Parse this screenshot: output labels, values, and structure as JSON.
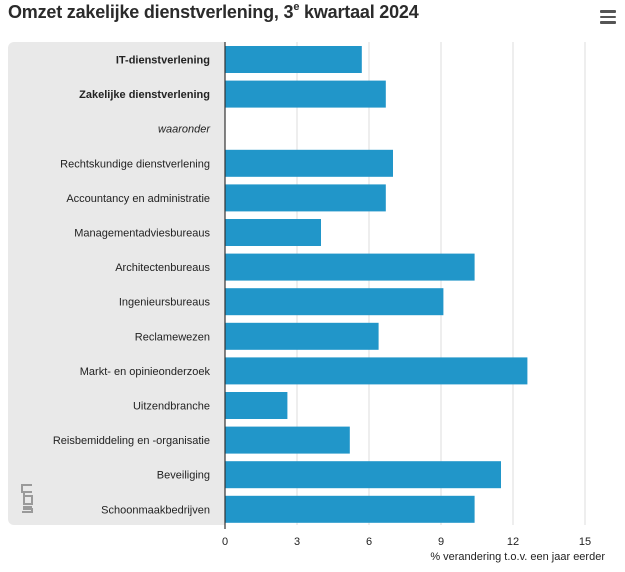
{
  "header": {
    "title_main": "Omzet zakelijke dienstverlening, 3",
    "title_sup": "e",
    "title_end": " kwartaal 2024",
    "menu_icon": "hamburger-icon"
  },
  "logo": "cbs-logo",
  "colors": {
    "bar": "#2196c9",
    "panel": "#e9e9e9",
    "grid": "#dddddd",
    "axis": "#333333"
  },
  "chart_data": {
    "type": "bar",
    "orientation": "horizontal",
    "title": "Omzet zakelijke dienstverlening, 3e kwartaal 2024",
    "xlabel": "% verandering t.o.v. een jaar eerder",
    "xlim": [
      0,
      15
    ],
    "xticks": [
      0,
      3,
      6,
      9,
      12,
      15
    ],
    "grid": true,
    "categories": [
      {
        "label": "IT-dienstverlening",
        "value": 5.7,
        "style": "bold"
      },
      {
        "label": "Zakelijke dienstverlening",
        "value": 6.7,
        "style": "bold"
      },
      {
        "label": "waaronder",
        "value": null,
        "style": "italic"
      },
      {
        "label": "Rechtskundige dienstverlening",
        "value": 7.0,
        "style": "normal"
      },
      {
        "label": "Accountancy en administratie",
        "value": 6.7,
        "style": "normal"
      },
      {
        "label": "Managementadviesbureaus",
        "value": 4.0,
        "style": "normal"
      },
      {
        "label": "Architectenbureaus",
        "value": 10.4,
        "style": "normal"
      },
      {
        "label": "Ingenieursbureaus",
        "value": 9.1,
        "style": "normal"
      },
      {
        "label": "Reclamewezen",
        "value": 6.4,
        "style": "normal"
      },
      {
        "label": "Markt- en opinieonderzoek",
        "value": 12.6,
        "style": "normal"
      },
      {
        "label": "Uitzendbranche",
        "value": 2.6,
        "style": "normal"
      },
      {
        "label": "Reisbemiddeling en -organisatie",
        "value": 5.2,
        "style": "normal"
      },
      {
        "label": "Beveiliging",
        "value": 11.5,
        "style": "normal"
      },
      {
        "label": "Schoonmaakbedrijven",
        "value": 10.4,
        "style": "normal"
      }
    ]
  }
}
